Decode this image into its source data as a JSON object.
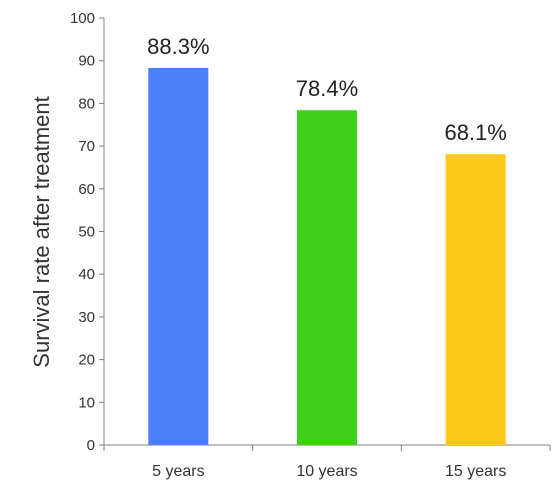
{
  "chart_data": {
    "type": "bar",
    "categories": [
      "5 years",
      "10 years",
      "15 years"
    ],
    "values": [
      88.3,
      78.4,
      68.1
    ],
    "data_labels": [
      "88.3%",
      "78.4%",
      "68.1%"
    ],
    "colors": [
      "#4a7ef5",
      "#3ed11a",
      "#ffc61a"
    ],
    "title": "",
    "xlabel": "",
    "ylabel": "Survival rate after treatment",
    "ylim": [
      0,
      100
    ],
    "yticks": [
      0,
      10,
      20,
      30,
      40,
      50,
      60,
      70,
      80,
      90,
      100
    ],
    "grid": false,
    "legend": "none"
  }
}
